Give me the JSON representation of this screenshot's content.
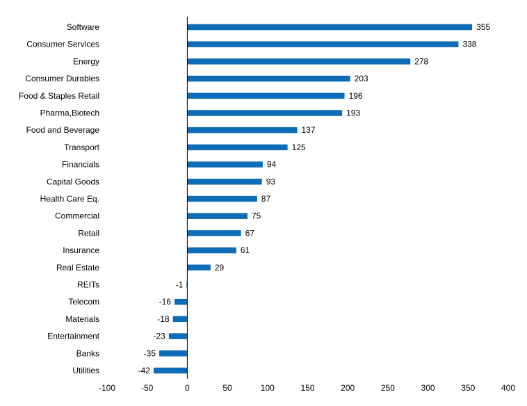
{
  "chart_data": {
    "type": "bar",
    "orientation": "horizontal",
    "categories": [
      "Software",
      "Consumer Services",
      "Energy",
      "Consumer Durables",
      "Food & Staples Retail",
      "Pharma,Biotech",
      "Food and Beverage",
      "Transport",
      "Financials",
      "Capital Goods",
      "Health Care Eq.",
      "Commercial",
      "Retail",
      "Insurance",
      "Real Estate",
      "REITs",
      "Telecom",
      "Materials",
      "Entertainment",
      "Banks",
      "Utilities"
    ],
    "values": [
      355,
      338,
      278,
      203,
      196,
      193,
      137,
      125,
      94,
      93,
      87,
      75,
      67,
      61,
      29,
      -1,
      -16,
      -18,
      -23,
      -35,
      -42
    ],
    "data_labels": [
      "355",
      "338",
      "278",
      "203",
      "196",
      "193",
      "137",
      "125",
      "94",
      "93",
      "87",
      "75",
      "67",
      "61",
      "29",
      "-1",
      "-16",
      "-18",
      "-23",
      "-35",
      "-42"
    ],
    "xlim": [
      -100,
      400
    ],
    "xticks": [
      -100,
      -50,
      0,
      50,
      100,
      150,
      200,
      250,
      300,
      350,
      400
    ],
    "xtick_labels": [
      "-100",
      "-50",
      "0",
      "50",
      "100",
      "150",
      "200",
      "250",
      "300",
      "350",
      "400"
    ],
    "title": "",
    "xlabel": "",
    "ylabel": "",
    "grid": false,
    "bar_color": "#0f6db8"
  }
}
